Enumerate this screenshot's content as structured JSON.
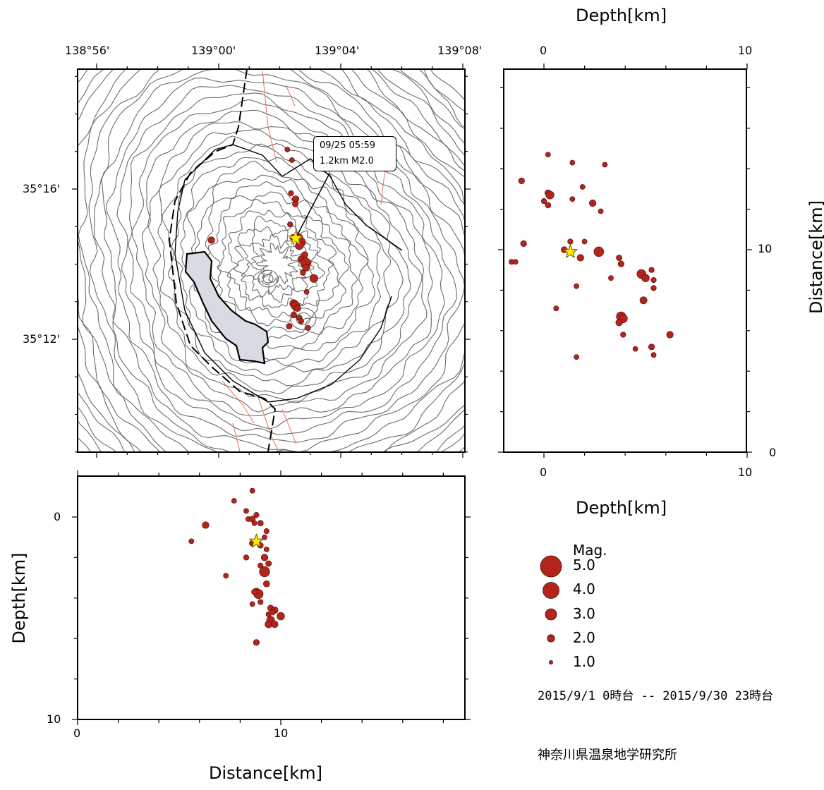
{
  "map": {
    "lon_ticks": [
      "138°56'",
      "139°00'",
      "139°04'",
      "139°08'"
    ],
    "lat_ticks": [
      "35°16'",
      "35°12'"
    ],
    "callout": {
      "line1": "09/25 05:59",
      "line2": "1.2km M2.0"
    },
    "colors": {
      "contour": "#6b6b6b",
      "fault": "#e8704f",
      "caldera": "#000000",
      "deposit": "#d8dce2",
      "event": "#b3241c",
      "star": "#ffeb00"
    },
    "quakes": [
      {
        "lon": 139.0395,
        "lat": 35.2648,
        "mag": 1.2
      },
      {
        "lon": 139.042,
        "lat": 35.2622,
        "mag": 1.6
      },
      {
        "lon": 139.0418,
        "lat": 35.26,
        "mag": 1.3
      },
      {
        "lon": 139.0405,
        "lat": 35.2452,
        "mag": 1.4
      },
      {
        "lon": 139.044,
        "lat": 35.245,
        "mag": 1.8
      },
      {
        "lon": 139.045,
        "lat": 35.243,
        "mag": 2.1
      },
      {
        "lon": 139.044,
        "lat": 35.2415,
        "mag": 1.9
      },
      {
        "lon": 139.047,
        "lat": 35.2375,
        "mag": 1.5
      },
      {
        "lon": 139.045,
        "lat": 35.2355,
        "mag": 1.6
      },
      {
        "lon": 139.0475,
        "lat": 35.2338,
        "mag": 2.4
      },
      {
        "lon": 139.0478,
        "lat": 35.2318,
        "mag": 1.7
      },
      {
        "lon": 139.046,
        "lat": 35.2295,
        "mag": 1.2
      },
      {
        "lon": 139.052,
        "lat": 35.227,
        "mag": 1.9
      },
      {
        "lon": 139.041,
        "lat": 35.2158,
        "mag": 1.9
      },
      {
        "lon": 139.042,
        "lat": 35.2148,
        "mag": 2.0
      },
      {
        "lon": 139.043,
        "lat": 35.2138,
        "mag": 1.6
      },
      {
        "lon": 139.041,
        "lat": 35.2108,
        "mag": 1.4
      },
      {
        "lon": 139.044,
        "lat": 35.2095,
        "mag": 1.3
      },
      {
        "lon": 139.045,
        "lat": 35.208,
        "mag": 1.2
      },
      {
        "lon": 139.0385,
        "lat": 35.2058,
        "mag": 1.3
      },
      {
        "lon": 138.996,
        "lat": 35.244,
        "mag": 1.6
      },
      {
        "lon": 139.0375,
        "lat": 35.2842,
        "mag": 1.1
      },
      {
        "lon": 139.04,
        "lat": 35.2795,
        "mag": 1.1
      },
      {
        "lon": 139.039,
        "lat": 35.251,
        "mag": 1.2
      },
      {
        "lon": 139.048,
        "lat": 35.221,
        "mag": 1.1
      },
      {
        "lon": 139.0488,
        "lat": 35.205,
        "mag": 1.2
      }
    ],
    "mainshock": {
      "lon": 139.042,
      "lat": 35.2448
    }
  },
  "ew_section": {
    "x_ticks": [
      "0",
      "10"
    ],
    "y_ticks": [
      "0",
      "10"
    ],
    "xlabel": "Distance[km]",
    "ylabel": "Depth[km]",
    "points": [
      {
        "d": 6.3,
        "z": 0.4,
        "mag": 1.2
      },
      {
        "d": 6.3,
        "z": 0.4,
        "mag": 1.6
      },
      {
        "d": 5.6,
        "z": 1.2,
        "mag": 1.1
      },
      {
        "d": 7.7,
        "z": -0.8,
        "mag": 1.1
      },
      {
        "d": 8.3,
        "z": -0.3,
        "mag": 1.1
      },
      {
        "d": 8.6,
        "z": -1.3,
        "mag": 1.1
      },
      {
        "d": 8.4,
        "z": 0.1,
        "mag": 1.1
      },
      {
        "d": 8.6,
        "z": 0.1,
        "mag": 1.4
      },
      {
        "d": 8.8,
        "z": -0.1,
        "mag": 1.2
      },
      {
        "d": 8.7,
        "z": 0.3,
        "mag": 1.1
      },
      {
        "d": 9.0,
        "z": 0.3,
        "mag": 1.3
      },
      {
        "d": 8.6,
        "z": 1.3,
        "mag": 1.4
      },
      {
        "d": 9.3,
        "z": 0.7,
        "mag": 1.2
      },
      {
        "d": 9.2,
        "z": 1.0,
        "mag": 1.1
      },
      {
        "d": 9.0,
        "z": 1.4,
        "mag": 1.3
      },
      {
        "d": 9.3,
        "z": 1.6,
        "mag": 1.1
      },
      {
        "d": 9.2,
        "z": 2.0,
        "mag": 1.6
      },
      {
        "d": 8.3,
        "z": 2.0,
        "mag": 1.2
      },
      {
        "d": 9.4,
        "z": 2.3,
        "mag": 1.3
      },
      {
        "d": 9.0,
        "z": 2.4,
        "mag": 1.2
      },
      {
        "d": 9.2,
        "z": 2.7,
        "mag": 2.4
      },
      {
        "d": 7.3,
        "z": 2.9,
        "mag": 1.1
      },
      {
        "d": 9.3,
        "z": 3.3,
        "mag": 1.5
      },
      {
        "d": 8.8,
        "z": 3.7,
        "mag": 1.8
      },
      {
        "d": 8.9,
        "z": 3.8,
        "mag": 2.2
      },
      {
        "d": 8.7,
        "z": 3.7,
        "mag": 1.3
      },
      {
        "d": 9.0,
        "z": 4.2,
        "mag": 1.2
      },
      {
        "d": 8.6,
        "z": 4.3,
        "mag": 1.1
      },
      {
        "d": 9.5,
        "z": 4.5,
        "mag": 1.4
      },
      {
        "d": 9.7,
        "z": 4.6,
        "mag": 1.6
      },
      {
        "d": 9.4,
        "z": 4.8,
        "mag": 1.2
      },
      {
        "d": 9.6,
        "z": 4.7,
        "mag": 1.3
      },
      {
        "d": 10.0,
        "z": 4.9,
        "mag": 1.8
      },
      {
        "d": 9.5,
        "z": 5.1,
        "mag": 1.9
      },
      {
        "d": 9.4,
        "z": 5.3,
        "mag": 1.7
      },
      {
        "d": 9.7,
        "z": 5.3,
        "mag": 1.6
      },
      {
        "d": 8.8,
        "z": 6.2,
        "mag": 1.4
      }
    ],
    "mainshock": {
      "d": 8.8,
      "z": 1.2
    }
  },
  "ns_section": {
    "depth_ticks_top": [
      "0",
      "10"
    ],
    "depth_ticks_bottom": [
      "0",
      "10"
    ],
    "distance_ticks": [
      "10",
      "0"
    ],
    "top_label": "Depth[km]",
    "bottom_label": "Depth[km]",
    "side_label": "Distance[km]",
    "points": [
      {
        "z": 0.2,
        "n": 14.7,
        "mag": 1.1
      },
      {
        "z": 1.4,
        "n": 14.3,
        "mag": 1.1
      },
      {
        "z": 3.0,
        "n": 14.2,
        "mag": 1.1
      },
      {
        "z": -1.1,
        "n": 13.4,
        "mag": 1.4
      },
      {
        "z": 0.2,
        "n": 12.8,
        "mag": 1.5
      },
      {
        "z": 0.3,
        "n": 12.7,
        "mag": 1.9
      },
      {
        "z": 0.0,
        "n": 12.4,
        "mag": 1.2
      },
      {
        "z": 0.2,
        "n": 12.2,
        "mag": 1.3
      },
      {
        "z": 1.4,
        "n": 12.5,
        "mag": 1.1
      },
      {
        "z": 1.9,
        "n": 13.1,
        "mag": 1.1
      },
      {
        "z": 2.4,
        "n": 12.3,
        "mag": 1.6
      },
      {
        "z": 2.8,
        "n": 11.9,
        "mag": 1.1
      },
      {
        "z": -1.0,
        "n": 10.3,
        "mag": 1.4
      },
      {
        "z": 1.0,
        "n": 10.0,
        "mag": 1.5
      },
      {
        "z": 2.7,
        "n": 9.9,
        "mag": 2.3
      },
      {
        "z": 1.8,
        "n": 9.6,
        "mag": 1.6
      },
      {
        "z": 2.0,
        "n": 10.4,
        "mag": 1.1
      },
      {
        "z": 1.3,
        "n": 10.4,
        "mag": 1.2
      },
      {
        "z": -1.6,
        "n": 9.4,
        "mag": 1.1
      },
      {
        "z": -1.4,
        "n": 9.4,
        "mag": 1.1
      },
      {
        "z": 3.7,
        "n": 9.6,
        "mag": 1.3
      },
      {
        "z": 3.8,
        "n": 9.3,
        "mag": 1.4
      },
      {
        "z": 4.8,
        "n": 8.8,
        "mag": 2.1
      },
      {
        "z": 5.0,
        "n": 8.6,
        "mag": 1.8
      },
      {
        "z": 5.3,
        "n": 9.0,
        "mag": 1.2
      },
      {
        "z": 5.4,
        "n": 8.5,
        "mag": 1.2
      },
      {
        "z": 5.4,
        "n": 8.1,
        "mag": 1.2
      },
      {
        "z": 3.3,
        "n": 8.6,
        "mag": 1.1
      },
      {
        "z": 4.9,
        "n": 7.5,
        "mag": 1.7
      },
      {
        "z": 3.8,
        "n": 6.7,
        "mag": 2.2
      },
      {
        "z": 3.9,
        "n": 6.6,
        "mag": 2.0
      },
      {
        "z": 3.7,
        "n": 6.4,
        "mag": 1.6
      },
      {
        "z": 3.9,
        "n": 5.8,
        "mag": 1.2
      },
      {
        "z": 6.2,
        "n": 5.8,
        "mag": 1.6
      },
      {
        "z": 5.3,
        "n": 5.2,
        "mag": 1.4
      },
      {
        "z": 5.4,
        "n": 4.8,
        "mag": 1.1
      },
      {
        "z": 4.5,
        "n": 5.1,
        "mag": 1.1
      },
      {
        "z": 1.6,
        "n": 4.7,
        "mag": 1.1
      },
      {
        "z": 0.6,
        "n": 7.1,
        "mag": 1.1
      },
      {
        "z": 1.6,
        "n": 8.2,
        "mag": 1.1
      }
    ],
    "mainshock": {
      "z": 1.3,
      "n": 9.9
    }
  },
  "legend": {
    "title": "Mag.",
    "items": [
      {
        "label": "5.0",
        "mag": 5.0
      },
      {
        "label": "4.0",
        "mag": 4.0
      },
      {
        "label": "3.0",
        "mag": 3.0
      },
      {
        "label": "2.0",
        "mag": 2.0
      },
      {
        "label": "1.0",
        "mag": 1.0
      }
    ]
  },
  "period": "2015/9/1 0時台 -- 2015/9/30 23時台",
  "institution": "神奈川県温泉地学研究所"
}
